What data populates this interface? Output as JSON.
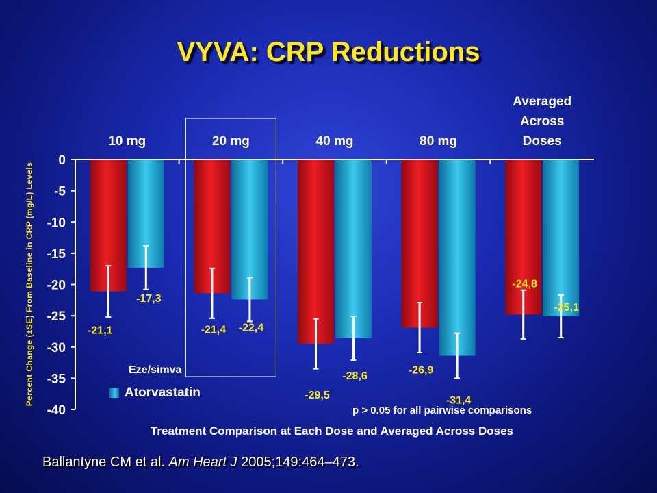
{
  "title": "VYVA: CRP Reductions",
  "citation": {
    "authors": "Ballantyne CM et al. ",
    "journal": "Am Heart J",
    "details": " 2005;149:464–473."
  },
  "legend": {
    "series1": "Eze/simva",
    "series2": "Atorvastatin"
  },
  "p_note": "p > 0.05 for all pairwise comparisons",
  "colors": {
    "eze_simva": "#d8121a",
    "atorvastatin": "#1fb3e0",
    "value_labels": "#ffe91a",
    "axis": "#ffffff"
  },
  "chart_data": {
    "type": "bar",
    "title": "VYVA: CRP Reductions",
    "xlabel": "Treatment Comparison at Each Dose and Averaged Across Doses",
    "ylabel": "Percent Change (±SE) From Baseline in CRP (mg/L) Levels",
    "ylim": [
      -40,
      0
    ],
    "yticks": [
      0,
      -5,
      -10,
      -15,
      -20,
      -25,
      -30,
      -35,
      -40
    ],
    "categories": [
      "10 mg",
      "20 mg",
      "40 mg",
      "80 mg",
      "Averaged Across Doses"
    ],
    "category_lines": [
      [
        "10 mg"
      ],
      [
        "20 mg"
      ],
      [
        "40 mg"
      ],
      [
        "80 mg"
      ],
      [
        "Averaged",
        "Across",
        "Doses"
      ]
    ],
    "highlighted_category": "20 mg",
    "series": [
      {
        "name": "Eze/simva",
        "values": [
          -21.1,
          -21.4,
          -29.5,
          -26.9,
          -24.8
        ],
        "labels": [
          "-21,1",
          "-21,4",
          "-29,5",
          "-26,9",
          "-24,8"
        ],
        "se": [
          4.1,
          4.0,
          4.0,
          4.0,
          3.9
        ]
      },
      {
        "name": "Atorvastatin",
        "values": [
          -17.3,
          -22.4,
          -28.6,
          -31.4,
          -25.1
        ],
        "labels": [
          "-17,3",
          "-22,4",
          "-28,6",
          "-31,4",
          "-25,1"
        ],
        "se": [
          3.5,
          3.5,
          3.5,
          3.6,
          3.4
        ]
      }
    ]
  }
}
